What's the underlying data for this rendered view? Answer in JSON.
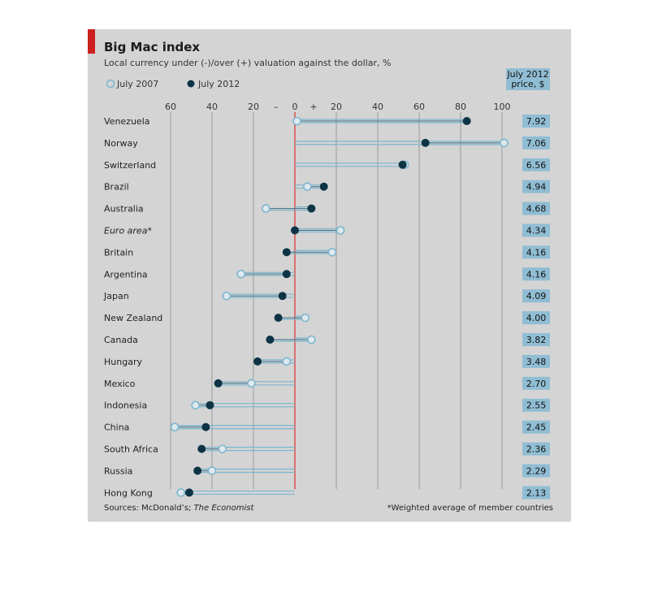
{
  "chart_data": {
    "type": "dot-plot",
    "title": "Big Mac index",
    "subtitle": "Local currency under (-)/over (+) valuation against the dollar, %",
    "legend": {
      "open_label": "July 2007",
      "filled_label": "July 2012",
      "placement": "top-left"
    },
    "price_header": "July 2012\nprice, $",
    "xlim": [
      -60,
      100
    ],
    "x_ticks": [
      "60",
      "40",
      "20",
      "–",
      "0",
      "+",
      "20",
      "40",
      "60",
      "80",
      "100"
    ],
    "rows": [
      {
        "country": "Venezuela",
        "italic": false,
        "y2007": 1,
        "y2012": 83,
        "price": "7.92"
      },
      {
        "country": "Norway",
        "italic": false,
        "y2007": 101,
        "y2012": 63,
        "price": "7.06"
      },
      {
        "country": "Switzerland",
        "italic": false,
        "y2007": 53,
        "y2012": 52,
        "price": "6.56"
      },
      {
        "country": "Brazil",
        "italic": false,
        "y2007": 6,
        "y2012": 14,
        "price": "4.94"
      },
      {
        "country": "Australia",
        "italic": false,
        "y2007": -14,
        "y2012": 8,
        "price": "4.68"
      },
      {
        "country": "Euro area*",
        "italic": true,
        "y2007": 22,
        "y2012": 0,
        "price": "4.34"
      },
      {
        "country": "Britain",
        "italic": false,
        "y2007": 18,
        "y2012": -4,
        "price": "4.16"
      },
      {
        "country": "Argentina",
        "italic": false,
        "y2007": -26,
        "y2012": -4,
        "price": "4.16"
      },
      {
        "country": "Japan",
        "italic": false,
        "y2007": -33,
        "y2012": -6,
        "price": "4.09"
      },
      {
        "country": "New Zealand",
        "italic": false,
        "y2007": 5,
        "y2012": -8,
        "price": "4.00"
      },
      {
        "country": "Canada",
        "italic": false,
        "y2007": 8,
        "y2012": -12,
        "price": "3.82"
      },
      {
        "country": "Hungary",
        "italic": false,
        "y2007": -4,
        "y2012": -18,
        "price": "3.48"
      },
      {
        "country": "Mexico",
        "italic": false,
        "y2007": -21,
        "y2012": -37,
        "price": "2.70"
      },
      {
        "country": "Indonesia",
        "italic": false,
        "y2007": -48,
        "y2012": -41,
        "price": "2.55"
      },
      {
        "country": "China",
        "italic": false,
        "y2007": -58,
        "y2012": -43,
        "price": "2.45"
      },
      {
        "country": "South Africa",
        "italic": false,
        "y2007": -35,
        "y2012": -45,
        "price": "2.36"
      },
      {
        "country": "Russia",
        "italic": false,
        "y2007": -40,
        "y2012": -47,
        "price": "2.29"
      },
      {
        "country": "Hong Kong",
        "italic": false,
        "y2007": -55,
        "y2012": -51,
        "price": "2.13"
      }
    ],
    "source_label": "Sources: McDonald’s; ",
    "source_italic": "The Economist",
    "footnote": "*Weighted average of member countries",
    "colors": {
      "filled": "#0d3445",
      "open_stroke": "#7db6ce",
      "bar": "#7db6ce",
      "zero_line": "#e03030",
      "price_box": "#90bdd3"
    }
  }
}
